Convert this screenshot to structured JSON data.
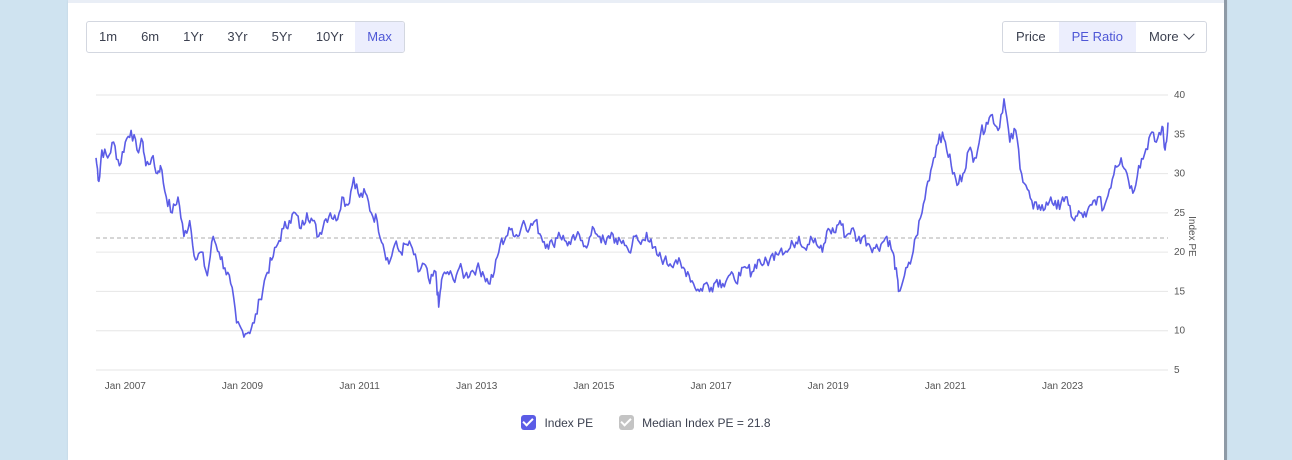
{
  "ranges": [
    "1m",
    "6m",
    "1Yr",
    "3Yr",
    "5Yr",
    "10Yr",
    "Max"
  ],
  "active_range": "Max",
  "views": [
    "Price",
    "PE Ratio",
    "More"
  ],
  "active_view": "PE Ratio",
  "icons": {
    "more_dropdown": "chevron-down-icon",
    "legend_check": "check-icon"
  },
  "colors": {
    "series": "#5b5ce6",
    "median": "#c4c4c4",
    "accent": "#4e57d6"
  },
  "chart_data": {
    "type": "line",
    "ylabel": "Index PE",
    "ylim": [
      5,
      40
    ],
    "yticks": [
      5,
      10,
      15,
      20,
      25,
      30,
      35,
      40
    ],
    "xlim": [
      2006.5,
      2024.8
    ],
    "xticks": [
      {
        "x": 2007,
        "label": "Jan 2007"
      },
      {
        "x": 2009,
        "label": "Jan 2009"
      },
      {
        "x": 2011,
        "label": "Jan 2011"
      },
      {
        "x": 2013,
        "label": "Jan 2013"
      },
      {
        "x": 2015,
        "label": "Jan 2015"
      },
      {
        "x": 2017,
        "label": "Jan 2017"
      },
      {
        "x": 2019,
        "label": "Jan 2019"
      },
      {
        "x": 2021,
        "label": "Jan 2021"
      },
      {
        "x": 2023,
        "label": "Jan 2023"
      }
    ],
    "grid": true,
    "legend_placement": "bottom-center",
    "series": [
      {
        "name": "Index PE",
        "points": [
          [
            2006.5,
            32
          ],
          [
            2006.55,
            29
          ],
          [
            2006.6,
            33
          ],
          [
            2006.7,
            32
          ],
          [
            2006.8,
            34
          ],
          [
            2006.9,
            31
          ],
          [
            2007.0,
            34
          ],
          [
            2007.1,
            35.5
          ],
          [
            2007.2,
            33
          ],
          [
            2007.3,
            34
          ],
          [
            2007.35,
            31
          ],
          [
            2007.45,
            32
          ],
          [
            2007.55,
            30
          ],
          [
            2007.6,
            31
          ],
          [
            2007.7,
            27
          ],
          [
            2007.8,
            25
          ],
          [
            2007.9,
            27
          ],
          [
            2008.0,
            22
          ],
          [
            2008.1,
            24
          ],
          [
            2008.2,
            19
          ],
          [
            2008.3,
            20
          ],
          [
            2008.4,
            17
          ],
          [
            2008.5,
            22
          ],
          [
            2008.6,
            20
          ],
          [
            2008.7,
            18
          ],
          [
            2008.8,
            16
          ],
          [
            2008.9,
            11
          ],
          [
            2009.0,
            10
          ],
          [
            2009.1,
            9.8
          ],
          [
            2009.2,
            11
          ],
          [
            2009.3,
            14
          ],
          [
            2009.4,
            17
          ],
          [
            2009.5,
            19
          ],
          [
            2009.6,
            21
          ],
          [
            2009.7,
            23
          ],
          [
            2009.8,
            24
          ],
          [
            2009.9,
            25
          ],
          [
            2010.0,
            23
          ],
          [
            2010.1,
            25
          ],
          [
            2010.2,
            24
          ],
          [
            2010.3,
            22
          ],
          [
            2010.4,
            24
          ],
          [
            2010.5,
            25
          ],
          [
            2010.6,
            24
          ],
          [
            2010.7,
            27
          ],
          [
            2010.8,
            26
          ],
          [
            2010.9,
            29.5
          ],
          [
            2011.0,
            27
          ],
          [
            2011.1,
            27.5
          ],
          [
            2011.2,
            25
          ],
          [
            2011.3,
            24
          ],
          [
            2011.4,
            21
          ],
          [
            2011.5,
            18.5
          ],
          [
            2011.6,
            21
          ],
          [
            2011.7,
            20
          ],
          [
            2011.8,
            21
          ],
          [
            2011.9,
            20.5
          ],
          [
            2012.0,
            17.5
          ],
          [
            2012.1,
            18.5
          ],
          [
            2012.2,
            16
          ],
          [
            2012.3,
            17.5
          ],
          [
            2012.35,
            13
          ],
          [
            2012.4,
            16.5
          ],
          [
            2012.5,
            17.5
          ],
          [
            2012.6,
            16.5
          ],
          [
            2012.7,
            18
          ],
          [
            2012.8,
            17
          ],
          [
            2012.9,
            17.5
          ],
          [
            2013.0,
            18
          ],
          [
            2013.1,
            17.5
          ],
          [
            2013.2,
            16
          ],
          [
            2013.3,
            17.5
          ],
          [
            2013.4,
            21
          ],
          [
            2013.5,
            22
          ],
          [
            2013.6,
            23
          ],
          [
            2013.7,
            22
          ],
          [
            2013.8,
            24
          ],
          [
            2013.9,
            23
          ],
          [
            2014.0,
            24
          ],
          [
            2014.1,
            22
          ],
          [
            2014.2,
            21
          ],
          [
            2014.3,
            21
          ],
          [
            2014.4,
            22.5
          ],
          [
            2014.5,
            21.5
          ],
          [
            2014.6,
            21
          ],
          [
            2014.7,
            22
          ],
          [
            2014.8,
            21.5
          ],
          [
            2014.9,
            21
          ],
          [
            2015.0,
            23
          ],
          [
            2015.1,
            22
          ],
          [
            2015.2,
            21
          ],
          [
            2015.3,
            22.5
          ],
          [
            2015.4,
            21
          ],
          [
            2015.5,
            21.5
          ],
          [
            2015.6,
            20
          ],
          [
            2015.7,
            22
          ],
          [
            2015.8,
            21
          ],
          [
            2015.9,
            22.5
          ],
          [
            2016.0,
            20.5
          ],
          [
            2016.1,
            19.5
          ],
          [
            2016.2,
            19
          ],
          [
            2016.3,
            18.5
          ],
          [
            2016.4,
            19
          ],
          [
            2016.5,
            18
          ],
          [
            2016.6,
            17.5
          ],
          [
            2016.7,
            16
          ],
          [
            2016.8,
            15
          ],
          [
            2016.9,
            16
          ],
          [
            2017.0,
            15.5
          ],
          [
            2017.1,
            16.5
          ],
          [
            2017.2,
            16
          ],
          [
            2017.3,
            17
          ],
          [
            2017.4,
            16.5
          ],
          [
            2017.5,
            17
          ],
          [
            2017.6,
            18
          ],
          [
            2017.7,
            17.5
          ],
          [
            2017.8,
            19
          ],
          [
            2017.9,
            18.5
          ],
          [
            2018.0,
            19
          ],
          [
            2018.1,
            20
          ],
          [
            2018.2,
            20.5
          ],
          [
            2018.3,
            20
          ],
          [
            2018.4,
            21
          ],
          [
            2018.5,
            22
          ],
          [
            2018.6,
            20.5
          ],
          [
            2018.7,
            22
          ],
          [
            2018.8,
            21
          ],
          [
            2018.9,
            20
          ],
          [
            2019.0,
            23
          ],
          [
            2019.1,
            22.5
          ],
          [
            2019.2,
            24
          ],
          [
            2019.3,
            22
          ],
          [
            2019.4,
            23
          ],
          [
            2019.5,
            21.5
          ],
          [
            2019.6,
            22
          ],
          [
            2019.7,
            21
          ],
          [
            2019.8,
            20.5
          ],
          [
            2019.9,
            21
          ],
          [
            2020.0,
            22
          ],
          [
            2020.1,
            20
          ],
          [
            2020.15,
            18
          ],
          [
            2020.2,
            15
          ],
          [
            2020.3,
            17
          ],
          [
            2020.4,
            18.5
          ],
          [
            2020.5,
            22
          ],
          [
            2020.6,
            25
          ],
          [
            2020.7,
            29
          ],
          [
            2020.8,
            32
          ],
          [
            2020.9,
            35
          ],
          [
            2021.0,
            34
          ],
          [
            2021.1,
            31
          ],
          [
            2021.2,
            28.5
          ],
          [
            2021.3,
            30
          ],
          [
            2021.4,
            33
          ],
          [
            2021.5,
            32
          ],
          [
            2021.6,
            35
          ],
          [
            2021.7,
            36.5
          ],
          [
            2021.8,
            37.5
          ],
          [
            2021.9,
            35.5
          ],
          [
            2022.0,
            39.5
          ],
          [
            2022.1,
            34
          ],
          [
            2022.2,
            35.5
          ],
          [
            2022.3,
            30
          ],
          [
            2022.4,
            28
          ],
          [
            2022.5,
            25.5
          ],
          [
            2022.6,
            26
          ],
          [
            2022.7,
            25.5
          ],
          [
            2022.8,
            27
          ],
          [
            2022.9,
            25.5
          ],
          [
            2023.0,
            27
          ],
          [
            2023.1,
            26
          ],
          [
            2023.2,
            24
          ],
          [
            2023.3,
            25
          ],
          [
            2023.4,
            24.5
          ],
          [
            2023.5,
            26
          ],
          [
            2023.6,
            27
          ],
          [
            2023.7,
            25.5
          ],
          [
            2023.8,
            28
          ],
          [
            2023.9,
            31
          ],
          [
            2024.0,
            32
          ],
          [
            2024.1,
            30
          ],
          [
            2024.2,
            27.5
          ],
          [
            2024.3,
            31
          ],
          [
            2024.4,
            32.5
          ],
          [
            2024.5,
            35
          ],
          [
            2024.6,
            34
          ],
          [
            2024.7,
            36
          ],
          [
            2024.75,
            33
          ],
          [
            2024.8,
            36.5
          ]
        ]
      },
      {
        "name": "Median Index PE = 21.8",
        "constant": 21.8
      }
    ]
  },
  "legend": [
    {
      "label": "Index PE",
      "color": "#5b5ce6"
    },
    {
      "label": "Median Index PE = 21.8",
      "color": "#c4c4c4"
    }
  ]
}
